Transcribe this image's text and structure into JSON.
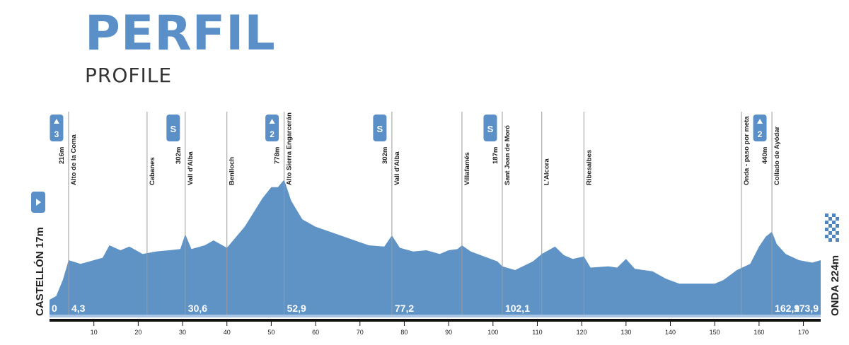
{
  "header": {
    "title": "PERFIL",
    "subtitle": "PROFILE"
  },
  "colors": {
    "profile_fill": "#5f93c6",
    "badge": "#5b8fc7",
    "axis": "#111111",
    "guide": "#9a9a9a"
  },
  "start": {
    "label": "CASTELLÓN 17m",
    "icon": "play-flag-icon"
  },
  "finish": {
    "label": "ONDA 224m",
    "icon": "checkered-flag-icon"
  },
  "chart_data": {
    "type": "area",
    "title": "PERFIL",
    "subtitle": "PROFILE",
    "xlabel": "",
    "ylabel": "",
    "xlim": [
      0,
      173.9
    ],
    "x_ticks": [
      10,
      20,
      30,
      40,
      50,
      60,
      70,
      80,
      90,
      100,
      110,
      120,
      130,
      140,
      150,
      160,
      170
    ],
    "y_units": "relative elevation (0-1)",
    "profile": [
      [
        0,
        0.12
      ],
      [
        1.5,
        0.15
      ],
      [
        3,
        0.28
      ],
      [
        4.3,
        0.44
      ],
      [
        7,
        0.41
      ],
      [
        12,
        0.46
      ],
      [
        13.5,
        0.56
      ],
      [
        16,
        0.52
      ],
      [
        18,
        0.55
      ],
      [
        21,
        0.49
      ],
      [
        24,
        0.51
      ],
      [
        27,
        0.52
      ],
      [
        29.5,
        0.53
      ],
      [
        30.6,
        0.65
      ],
      [
        32,
        0.53
      ],
      [
        35,
        0.56
      ],
      [
        37,
        0.6
      ],
      [
        40,
        0.54
      ],
      [
        44,
        0.71
      ],
      [
        48,
        0.94
      ],
      [
        50,
        1.03
      ],
      [
        51.5,
        1.03
      ],
      [
        52.9,
        1.09
      ],
      [
        54.5,
        0.92
      ],
      [
        57,
        0.77
      ],
      [
        60,
        0.71
      ],
      [
        64,
        0.66
      ],
      [
        68,
        0.61
      ],
      [
        72,
        0.56
      ],
      [
        75.5,
        0.55
      ],
      [
        77.2,
        0.64
      ],
      [
        79,
        0.54
      ],
      [
        82,
        0.51
      ],
      [
        85,
        0.52
      ],
      [
        88,
        0.49
      ],
      [
        90,
        0.52
      ],
      [
        92,
        0.53
      ],
      [
        93,
        0.56
      ],
      [
        95,
        0.51
      ],
      [
        98,
        0.47
      ],
      [
        101,
        0.43
      ],
      [
        102.1,
        0.39
      ],
      [
        105,
        0.36
      ],
      [
        109,
        0.43
      ],
      [
        111,
        0.49
      ],
      [
        114,
        0.55
      ],
      [
        116,
        0.48
      ],
      [
        118,
        0.45
      ],
      [
        120.5,
        0.47
      ],
      [
        122,
        0.38
      ],
      [
        126,
        0.39
      ],
      [
        128,
        0.38
      ],
      [
        130,
        0.45
      ],
      [
        132,
        0.37
      ],
      [
        136,
        0.35
      ],
      [
        139,
        0.29
      ],
      [
        142,
        0.25
      ],
      [
        150,
        0.25
      ],
      [
        152,
        0.28
      ],
      [
        155,
        0.36
      ],
      [
        158,
        0.41
      ],
      [
        160,
        0.55
      ],
      [
        161.5,
        0.63
      ],
      [
        162.9,
        0.67
      ],
      [
        164,
        0.57
      ],
      [
        166,
        0.49
      ],
      [
        169,
        0.44
      ],
      [
        172,
        0.42
      ],
      [
        173.9,
        0.44
      ]
    ],
    "km_markers": [
      {
        "x": 0,
        "label": "0"
      },
      {
        "x": 4.3,
        "label": "4,3"
      },
      {
        "x": 30.6,
        "label": "30,6"
      },
      {
        "x": 52.9,
        "label": "52,9"
      },
      {
        "x": 77.2,
        "label": "77,2"
      },
      {
        "x": 102.1,
        "label": "102,1"
      },
      {
        "x": 162.9,
        "label": "162,9"
      },
      {
        "x": 173.9,
        "label": "173,9"
      }
    ],
    "waypoints": [
      {
        "x": 4.3,
        "name": "Alto de la Coma",
        "alt": "216m",
        "badge": "3",
        "badge_type": "climb"
      },
      {
        "x": 22,
        "name": "Cabanes"
      },
      {
        "x": 30.6,
        "name": "Vall d'Alba",
        "alt": "302m",
        "badge": "S",
        "badge_type": "sprint"
      },
      {
        "x": 40,
        "name": "Benlloch"
      },
      {
        "x": 52.9,
        "name": "Alto Sierra Engarcerán",
        "alt": "778m",
        "badge": "2",
        "badge_type": "climb"
      },
      {
        "x": 77.2,
        "name": "Vall d'Alba",
        "alt": "302m",
        "badge": "S",
        "badge_type": "sprint"
      },
      {
        "x": 93,
        "name": "Villafamés"
      },
      {
        "x": 102.1,
        "name": "Sant Joan de Moró",
        "alt": "187m",
        "badge": "S",
        "badge_type": "sprint"
      },
      {
        "x": 111,
        "name": "L'Alcora"
      },
      {
        "x": 120.5,
        "name": "Ribesalbes"
      },
      {
        "x": 156,
        "name": "Onda - paso por meta"
      },
      {
        "x": 162.9,
        "name": "Collado de Ayódar",
        "alt": "440m",
        "badge": "2",
        "badge_type": "climb"
      }
    ]
  }
}
